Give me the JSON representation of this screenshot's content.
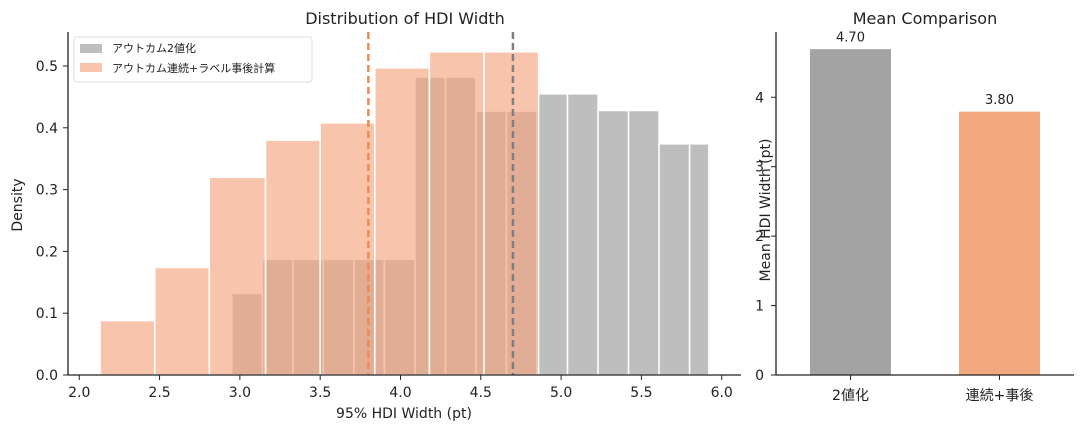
{
  "chart_data": [
    {
      "type": "histogram",
      "title": "Distribution of HDI Width",
      "xlabel": "95% HDI Width (pt)",
      "ylabel": "Density",
      "xlim": [
        1.93,
        6.12
      ],
      "ylim": [
        0,
        0.555
      ],
      "xticks": [
        "2.0",
        "2.5",
        "3.0",
        "3.5",
        "4.0",
        "4.5",
        "5.0",
        "5.5",
        "6.0"
      ],
      "yticks": [
        "0.0",
        "0.1",
        "0.2",
        "0.3",
        "0.4",
        "0.5"
      ],
      "legend_position": "top-left",
      "series": [
        {
          "name": "アウトカム2値化",
          "color": "#a8a8a8",
          "bins": [
            {
              "x0": 2.95,
              "x1": 3.14,
              "density": 0.132
            },
            {
              "x0": 3.14,
              "x1": 3.33,
              "density": 0.187
            },
            {
              "x0": 3.33,
              "x1": 3.52,
              "density": 0.187
            },
            {
              "x0": 3.52,
              "x1": 3.71,
              "density": 0.187
            },
            {
              "x0": 3.71,
              "x1": 3.9,
              "density": 0.187
            },
            {
              "x0": 3.9,
              "x1": 4.09,
              "density": 0.187
            },
            {
              "x0": 4.09,
              "x1": 4.28,
              "density": 0.482
            },
            {
              "x0": 4.28,
              "x1": 4.47,
              "density": 0.482
            },
            {
              "x0": 4.47,
              "x1": 4.66,
              "density": 0.427
            },
            {
              "x0": 4.66,
              "x1": 4.85,
              "density": 0.427
            },
            {
              "x0": 4.85,
              "x1": 5.04,
              "density": 0.455
            },
            {
              "x0": 5.04,
              "x1": 5.23,
              "density": 0.455
            },
            {
              "x0": 5.23,
              "x1": 5.42,
              "density": 0.428
            },
            {
              "x0": 5.42,
              "x1": 5.61,
              "density": 0.428
            },
            {
              "x0": 5.61,
              "x1": 5.8,
              "density": 0.374
            },
            {
              "x0": 5.8,
              "x1": 5.92,
              "density": 0.374
            }
          ],
          "mean": 4.7
        },
        {
          "name": "アウトカム連続+ラベル事後計算",
          "color": "#f4a57e",
          "bins": [
            {
              "x0": 2.13,
              "x1": 2.47,
              "density": 0.088
            },
            {
              "x0": 2.47,
              "x1": 2.81,
              "density": 0.174
            },
            {
              "x0": 2.81,
              "x1": 3.16,
              "density": 0.32
            },
            {
              "x0": 3.16,
              "x1": 3.5,
              "density": 0.38
            },
            {
              "x0": 3.5,
              "x1": 3.84,
              "density": 0.408
            },
            {
              "x0": 3.84,
              "x1": 4.18,
              "density": 0.497
            },
            {
              "x0": 4.18,
              "x1": 4.52,
              "density": 0.523
            },
            {
              "x0": 4.52,
              "x1": 4.86,
              "density": 0.523
            }
          ],
          "mean": 3.8
        }
      ]
    },
    {
      "type": "bar",
      "title": "Mean Comparison",
      "xlabel": "",
      "ylabel": "Mean HDI Width (pt)",
      "ylim": [
        0,
        4.94
      ],
      "yticks": [
        "0",
        "1",
        "2",
        "3",
        "4"
      ],
      "categories": [
        "2値化",
        "連続+事後"
      ],
      "values": [
        4.7,
        3.8
      ],
      "value_labels": [
        "4.70",
        "3.80"
      ],
      "colors": [
        "#a3a3a3",
        "#f2a77f"
      ]
    }
  ]
}
